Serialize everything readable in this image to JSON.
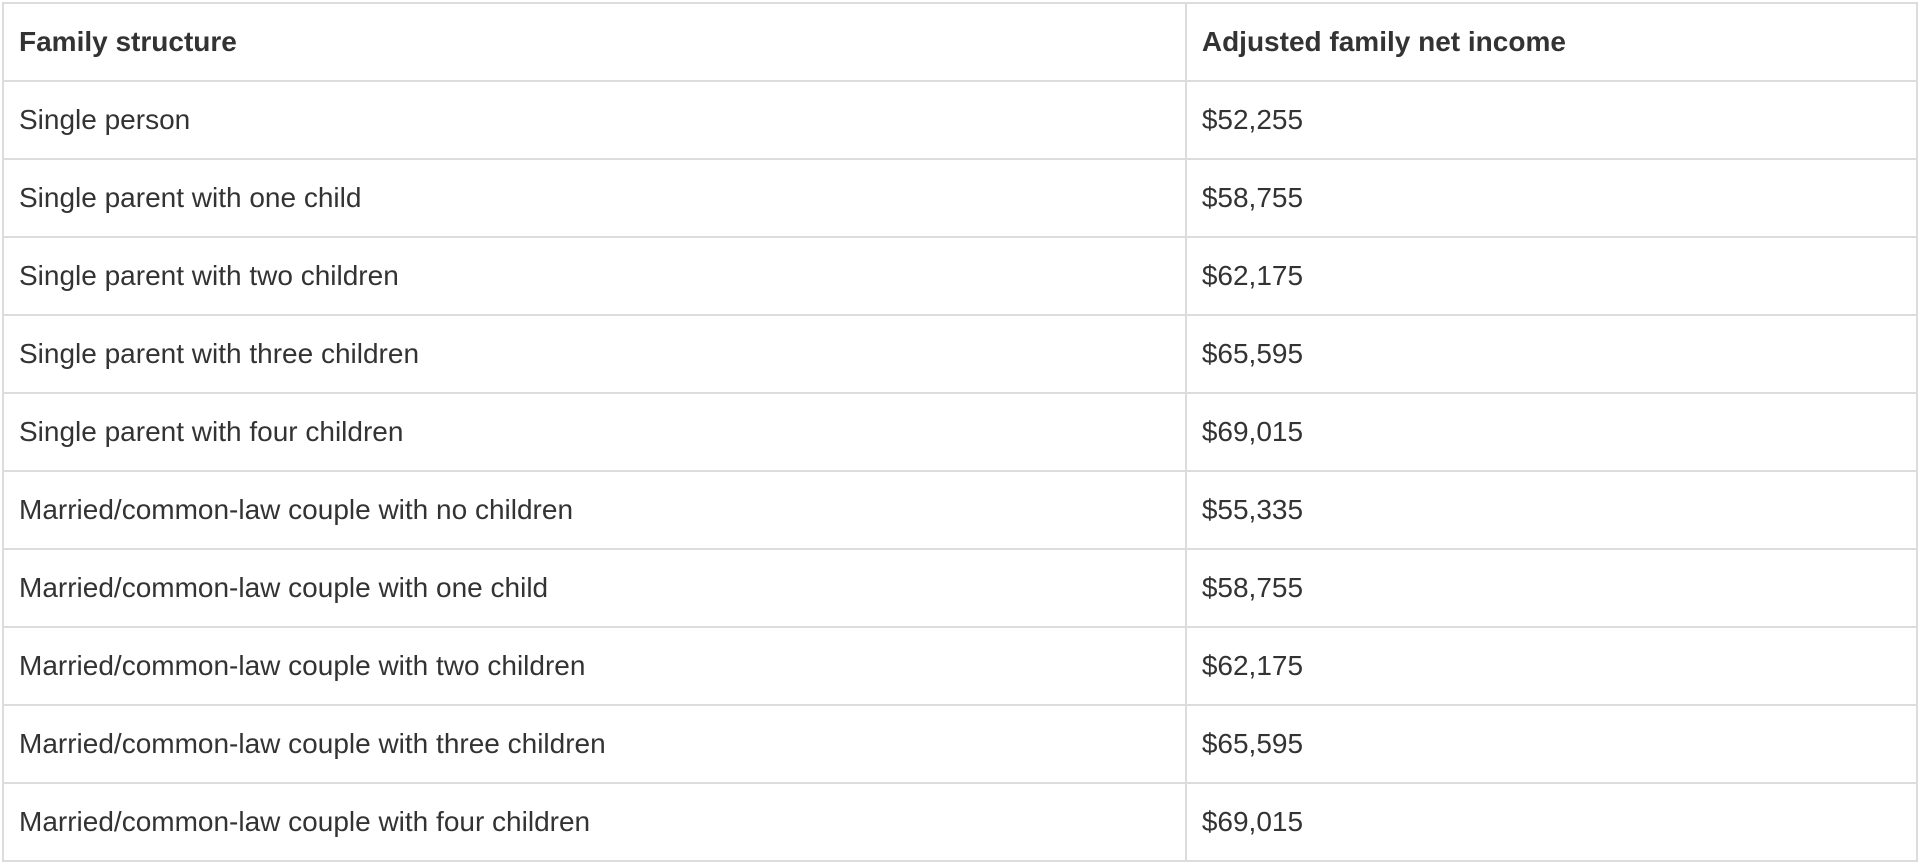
{
  "colors": {
    "border": "#dcdcdc",
    "text": "#333333",
    "background": "#ffffff"
  },
  "table": {
    "columns": [
      {
        "label": "Family structure"
      },
      {
        "label": "Adjusted family net income"
      }
    ],
    "rows": [
      {
        "structure": "Single person",
        "income": "$52,255"
      },
      {
        "structure": "Single parent with one child",
        "income": "$58,755"
      },
      {
        "structure": "Single parent with two children",
        "income": "$62,175"
      },
      {
        "structure": "Single parent with three children",
        "income": "$65,595"
      },
      {
        "structure": "Single parent with four children",
        "income": "$69,015"
      },
      {
        "structure": "Married/common-law couple with no children",
        "income": "$55,335"
      },
      {
        "structure": "Married/common-law couple with one child",
        "income": "$58,755"
      },
      {
        "structure": "Married/common-law couple with two children",
        "income": "$62,175"
      },
      {
        "structure": "Married/common-law couple with three children",
        "income": "$65,595"
      },
      {
        "structure": "Married/common-law couple with four children",
        "income": "$69,015"
      }
    ]
  }
}
